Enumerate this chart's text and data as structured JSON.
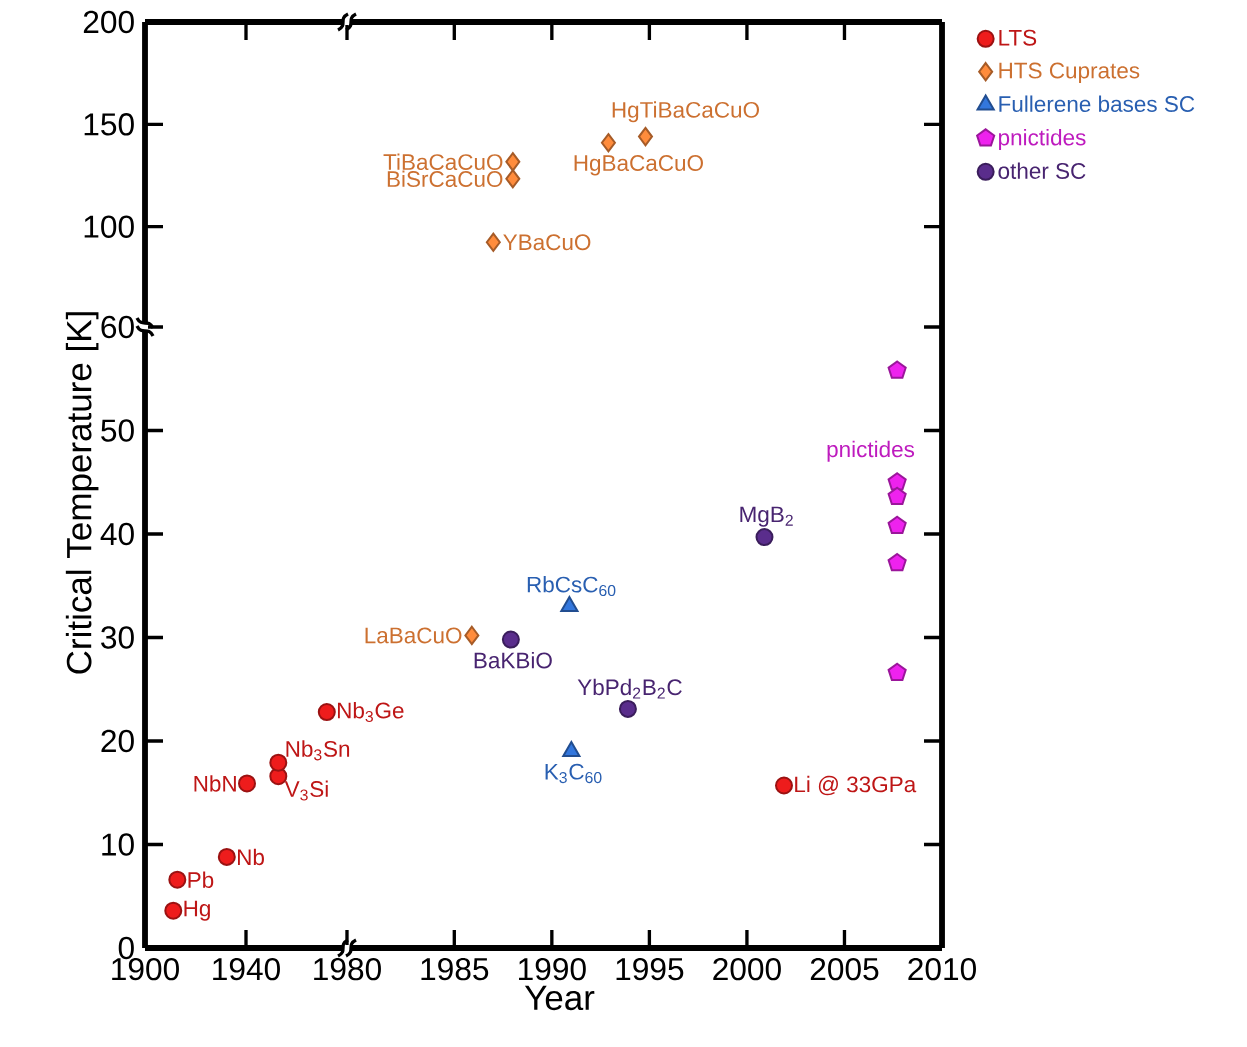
{
  "chart_data": [
    {
      "type": "scatter",
      "ylabel": "Critical Temperature [K]",
      "xlim": [
        1900,
        1980
      ],
      "xticks": [
        1900,
        1940,
        1980
      ],
      "ylim": [
        0,
        60
      ],
      "yticks": [
        0,
        10,
        20,
        30,
        40,
        50,
        60
      ],
      "grid": false,
      "series": [
        {
          "color": "#ee1c1c",
          "marker": "circle",
          "x": [
            1911.2,
            1912.8,
            1932.4,
            1940.4,
            1952.8,
            1952.8,
            1972
          ],
          "values": [
            3.6,
            6.6,
            8.8,
            15.9,
            16.6,
            17.9,
            22.8
          ]
        }
      ],
      "annotations": [
        {
          "text": "Hg",
          "x": 1911.2,
          "y": 3.6
        },
        {
          "text": "Pb",
          "x": 1912.8,
          "y": 6.6
        },
        {
          "text": "Nb",
          "x": 1932.4,
          "y": 8.8
        },
        {
          "text": "NbN",
          "x": 1940.4,
          "y": 15.9
        },
        {
          "text": "V$_{3}$Si",
          "x": 1952.8,
          "y": 16.6
        },
        {
          "text": "Nb$_{3}$Sn",
          "x": 1952.8,
          "y": 17.9
        },
        {
          "text": "Nb$_{3}$Ge",
          "x": 1972,
          "y": 22.8
        }
      ]
    },
    {
      "type": "scatter",
      "xlabel": "Year",
      "xlim": [
        1979.5,
        2010
      ],
      "xticks": [
        1985,
        1990,
        1995,
        2000,
        2005,
        2010
      ],
      "ylim": [
        0,
        60
      ],
      "yticks": [
        0,
        10,
        20,
        30,
        40,
        50,
        60
      ],
      "grid": false,
      "tick_labels": "x",
      "legend": "top right",
      "series": [
        {
          "name": "LTS",
          "color": "#ee1c1c",
          "marker": "circle",
          "x": [
            2001.9
          ],
          "values": [
            15.7
          ]
        },
        {
          "name": "HTS Cuprates",
          "color": "#ff8c3c",
          "marker": "diamond",
          "x": [
            1985.9
          ],
          "values": [
            30.2
          ]
        },
        {
          "name": "Fullerene bases SC",
          "color": "#3377dd",
          "marker": "triangle",
          "x": [
            1990.9,
            1991
          ],
          "values": [
            33,
            19
          ]
        },
        {
          "name": "pnictides",
          "color": "#ee22ee",
          "x": [
            2007.7,
            2007.7,
            2007.7,
            2007.7,
            2007.7,
            2007.7
          ],
          "values": [
            55.8,
            45,
            43.6,
            40.8,
            37.2,
            26.6
          ]
        },
        {
          "name": "other SC",
          "color": "#5a2d8c",
          "marker": "circle",
          "x": [
            1987.9,
            1993.9,
            2000.9
          ],
          "values": [
            29.8,
            23.1,
            39.7
          ]
        }
      ],
      "annotations": [
        {
          "text": "Li @ 33GPa",
          "x": 2001.9,
          "y": 15.7
        },
        {
          "text": "LaBaCuO",
          "x": 1985.9,
          "y": 30.2
        },
        {
          "text": "BaKBiO",
          "x": 1987.9,
          "y": 29.8
        },
        {
          "text": "RbCsC$_{60}$",
          "x": 1990.9,
          "y": 33
        },
        {
          "text": "K$_{3}$C$_{60}$",
          "x": 1991,
          "y": 19
        },
        {
          "text": "YbPd$_{2}$B$_{2}$C",
          "x": 1993.9,
          "y": 23.1
        },
        {
          "text": "MgB$_{2}$",
          "x": 2000.9,
          "y": 39.7
        },
        "pnictides"
      ]
    },
    {
      "type": "scatter",
      "xlim": [
        1900,
        1980
      ],
      "xticks": [
        1900,
        1940,
        1980
      ],
      "ylim": [
        51,
        200
      ],
      "yticks": [
        100,
        150,
        200
      ],
      "grid": false,
      "tick_labels": "y"
    },
    {
      "type": "scatter",
      "xlim": [
        1979.5,
        2010
      ],
      "xticks": [
        1985,
        1990,
        1995,
        2000,
        2005,
        2010
      ],
      "ylim": [
        51,
        200
      ],
      "yticks": [
        100,
        150,
        200
      ],
      "grid": false,
      "tick_labels": false,
      "series": [
        {
          "color": "#ff8c3c",
          "marker": "diamond",
          "x": [
            1987,
            1988,
            1988,
            1992.9,
            1994.8
          ],
          "values": [
            92.4,
            123.4,
            131.7,
            141,
            144
          ]
        }
      ],
      "annotations": [
        {
          "text": "YBaCuO",
          "x": 1987,
          "y": 92.4
        },
        {
          "text": "BiSrCaCuO",
          "x": 1988,
          "y": 123.4
        },
        {
          "text": "TiBaCaCuO",
          "x": 1988,
          "y": 131.7
        },
        {
          "text": "HgBaCaCuO",
          "x": 1992.9,
          "y": 141
        },
        {
          "text": "HgTiBaCaCuO",
          "x": 1994.8,
          "y": 144
        }
      ]
    }
  ]
}
